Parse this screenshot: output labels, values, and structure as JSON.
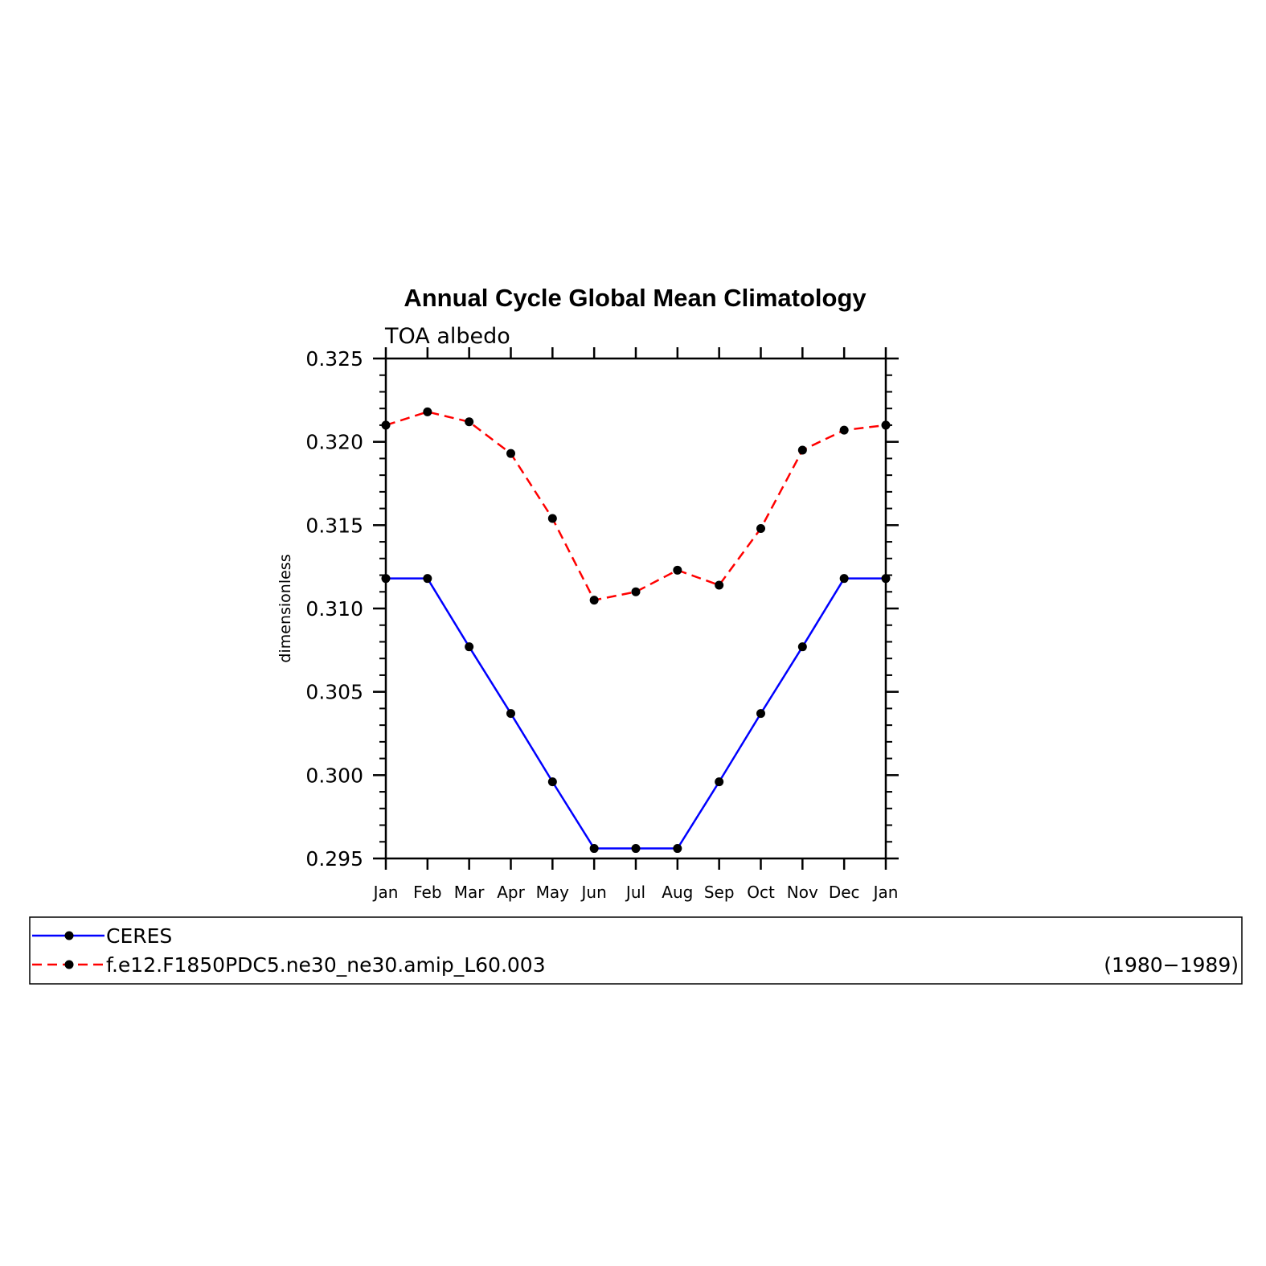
{
  "chart_data": {
    "type": "line",
    "title": "Annual Cycle Global Mean Climatology",
    "subtitle": "TOA albedo",
    "xlabel": "",
    "ylabel": "dimensionless",
    "categories": [
      "Jan",
      "Feb",
      "Mar",
      "Apr",
      "May",
      "Jun",
      "Jul",
      "Aug",
      "Sep",
      "Oct",
      "Nov",
      "Dec",
      "Jan"
    ],
    "ylim": [
      0.295,
      0.325
    ],
    "yticks": [
      "0.295",
      "0.300",
      "0.305",
      "0.310",
      "0.315",
      "0.320",
      "0.325"
    ],
    "grid": false,
    "legend_position": "bottom",
    "series": [
      {
        "name": "CERES",
        "color": "#0000ff",
        "line_style": "solid",
        "marker": "filled-circle",
        "values": [
          0.3118,
          0.3118,
          0.3077,
          0.3037,
          0.2996,
          0.2956,
          0.2956,
          0.2956,
          0.2996,
          0.3037,
          0.3077,
          0.3118,
          0.3118
        ]
      },
      {
        "name": "f.e12.F1850PDC5.ne30_ne30.amip_L60.003",
        "color": "#ff0000",
        "line_style": "dashed",
        "marker": "filled-circle",
        "values": [
          0.321,
          0.3218,
          0.3212,
          0.3193,
          0.3154,
          0.3105,
          0.311,
          0.3123,
          0.3114,
          0.3148,
          0.3195,
          0.3207,
          0.321
        ]
      }
    ],
    "legend_note": "(1980−1989)"
  }
}
